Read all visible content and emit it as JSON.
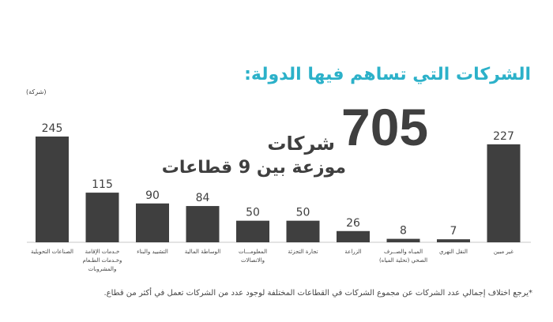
{
  "title": "الشركات التي تساهم فيها الدولة:",
  "unit_label": "(شركة)",
  "headline": {
    "number": "705",
    "word": "شركات",
    "subtitle": "موزعة بين 9 قطاعات"
  },
  "footnote": "*يرجع اختلاف إجمالي عدد الشركات عن مجموع الشركات في القطاعات المختلفة لوجود عدد من الشركات تعمل في أكثر من قطاع.",
  "colors": {
    "bar": "#3f3f3f",
    "title": "#2cb1c9",
    "baseline": "#c8c8c8"
  },
  "chart_data": {
    "type": "bar",
    "categories": [
      [
        "الصناعات التحويلية"
      ],
      [
        "خـدمات الإقامة",
        "وخـدمات الطـعام",
        "والمشروبات"
      ],
      [
        "التشييد والبناء"
      ],
      [
        "الوساطة المالية"
      ],
      [
        "المعلومـــات",
        "والاتصالات"
      ],
      [
        "تجارة التجزئة"
      ],
      [
        "الزراعة"
      ],
      [
        "الميـاه والصــرف",
        "الصحي (تحلية المياه)"
      ],
      [
        "النقل النهري"
      ],
      [
        "غير مبين"
      ]
    ],
    "values": [
      245,
      115,
      90,
      84,
      50,
      50,
      26,
      8,
      7,
      227
    ],
    "ylim": [
      0,
      245
    ]
  }
}
